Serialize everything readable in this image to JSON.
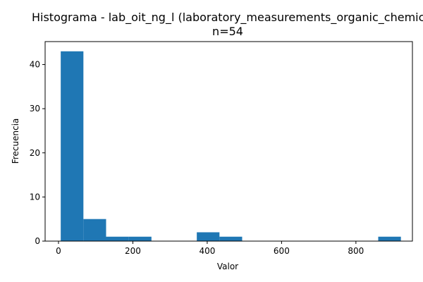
{
  "chart_data": {
    "type": "bar",
    "title_line1": "Histograma - lab_oit_ng_l (laboratory_measurements_organic_chemicals",
    "title_line2": "n=54",
    "xlabel": "Valor",
    "ylabel": "Frecuencia",
    "xlim": [
      -36,
      952
    ],
    "ylim": [
      0,
      45.2
    ],
    "xticks": [
      0,
      200,
      400,
      600,
      800
    ],
    "yticks": [
      0,
      10,
      20,
      30,
      40
    ],
    "bar_color": "#1f77b4",
    "bins": [
      {
        "x0": 6,
        "x1": 67,
        "count": 43
      },
      {
        "x0": 67,
        "x1": 128,
        "count": 5
      },
      {
        "x0": 128,
        "x1": 189,
        "count": 1
      },
      {
        "x0": 189,
        "x1": 250,
        "count": 1
      },
      {
        "x0": 250,
        "x1": 311,
        "count": 0
      },
      {
        "x0": 311,
        "x1": 372,
        "count": 0
      },
      {
        "x0": 372,
        "x1": 433,
        "count": 2
      },
      {
        "x0": 433,
        "x1": 494,
        "count": 1
      },
      {
        "x0": 494,
        "x1": 555,
        "count": 0
      },
      {
        "x0": 555,
        "x1": 616,
        "count": 0
      },
      {
        "x0": 616,
        "x1": 677,
        "count": 0
      },
      {
        "x0": 677,
        "x1": 738,
        "count": 0
      },
      {
        "x0": 738,
        "x1": 799,
        "count": 0
      },
      {
        "x0": 799,
        "x1": 860,
        "count": 0
      },
      {
        "x0": 860,
        "x1": 921,
        "count": 1
      }
    ]
  }
}
